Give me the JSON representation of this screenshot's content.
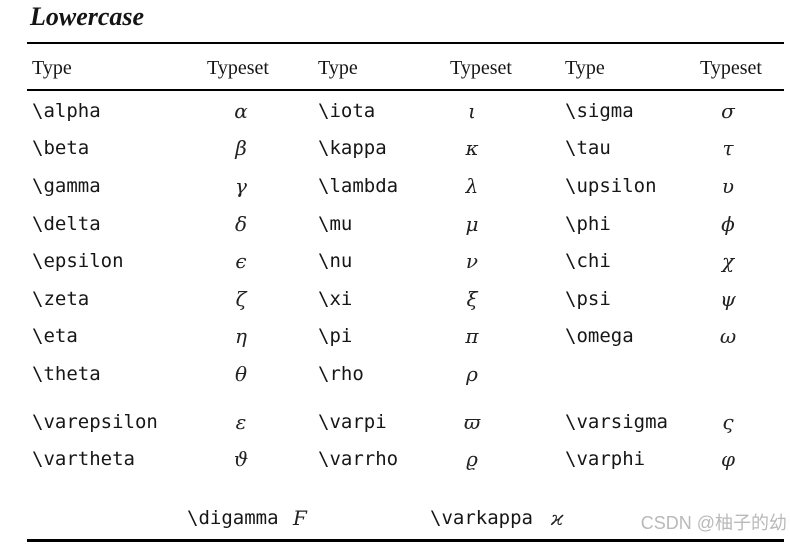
{
  "title": "Lowercase",
  "watermark": "CSDN @柚子的幼",
  "colors": {
    "background": "#ffffff",
    "text": "#161616",
    "rule": "#000000",
    "watermark": "#b9b9b9"
  },
  "table": {
    "headers": [
      "Type",
      "Typeset",
      "Type",
      "Typeset",
      "Type",
      "Typeset"
    ],
    "groups": [
      [
        [
          "\\alpha",
          "α",
          "\\iota",
          "ι",
          "\\sigma",
          "σ"
        ],
        [
          "\\beta",
          "β",
          "\\kappa",
          "κ",
          "\\tau",
          "τ"
        ],
        [
          "\\gamma",
          "γ",
          "\\lambda",
          "λ",
          "\\upsilon",
          "υ"
        ],
        [
          "\\delta",
          "δ",
          "\\mu",
          "μ",
          "\\phi",
          "ϕ"
        ],
        [
          "\\epsilon",
          "ϵ",
          "\\nu",
          "ν",
          "\\chi",
          "χ"
        ],
        [
          "\\zeta",
          "ζ",
          "\\xi",
          "ξ",
          "\\psi",
          "ψ"
        ],
        [
          "\\eta",
          "η",
          "\\pi",
          "π",
          "\\omega",
          "ω"
        ],
        [
          "\\theta",
          "θ",
          "\\rho",
          "ρ",
          "",
          ""
        ]
      ],
      [
        [
          "\\varepsilon",
          "ε",
          "\\varpi",
          "ϖ",
          "\\varsigma",
          "ς"
        ],
        [
          "\\vartheta",
          "ϑ",
          "\\varrho",
          "ϱ",
          "\\varphi",
          "φ"
        ]
      ]
    ],
    "special": {
      "cmd1": "\\digamma",
      "sym1": "Ϝ",
      "cmd2": "\\varkappa",
      "sym2": "ϰ"
    }
  }
}
